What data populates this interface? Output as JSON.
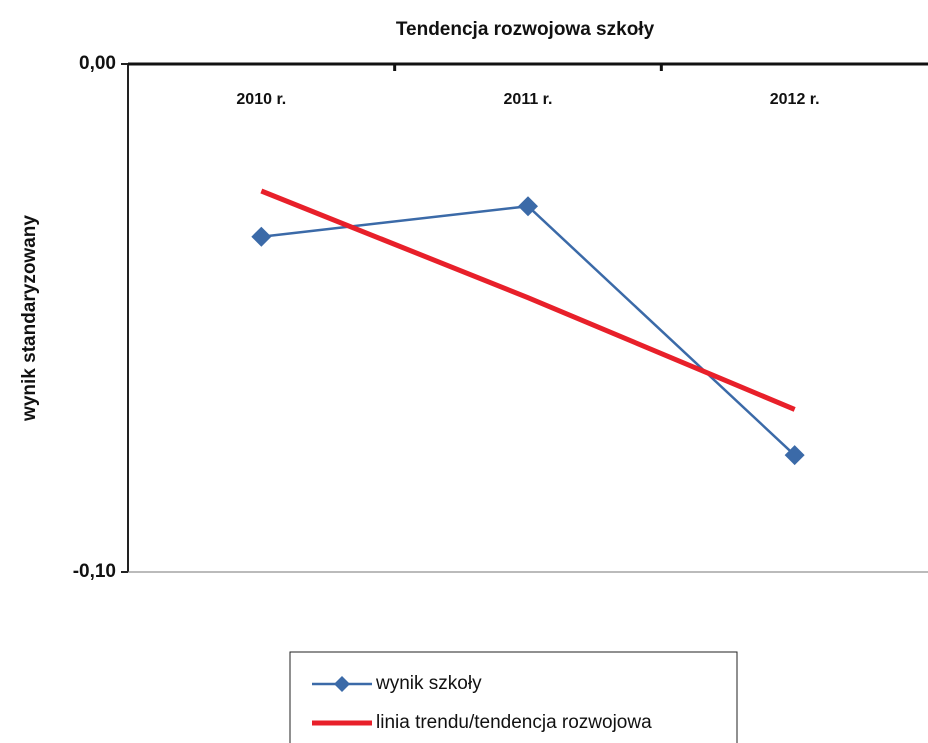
{
  "chart_data": {
    "type": "line",
    "title": "Tendencja rozwojowa szkoły",
    "y_label": "wynik standaryzowany",
    "categories": [
      "2010 r.",
      "2011 r.",
      "2012 r."
    ],
    "series": [
      {
        "name": "wynik szkoły",
        "color": "#3b6aa8",
        "marker": "diamond",
        "values": [
          -0.034,
          -0.028,
          -0.077
        ]
      },
      {
        "name": "linia trendu/tendencja rozwojowa",
        "color": "#e8202a",
        "values": [
          -0.025,
          -0.046,
          -0.068
        ]
      }
    ],
    "ylim": [
      -0.1,
      0
    ],
    "yticks": [
      {
        "value": -0.1,
        "label": "-0,10"
      },
      {
        "value": 0,
        "label": "0,00"
      }
    ],
    "grid": false
  }
}
